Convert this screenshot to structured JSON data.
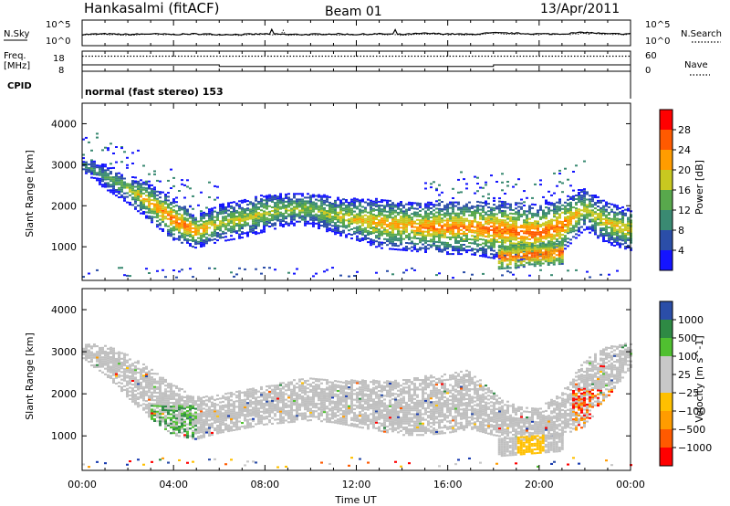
{
  "header": {
    "station": "Hankasalmi (fitACF)",
    "beam": "Beam 01",
    "date": "13/Apr/2011"
  },
  "noise_panel": {
    "left_label": "N.Sky",
    "right_label": "N.Search",
    "left_ticks": [
      "10^5",
      "10^0"
    ],
    "right_ticks": [
      "10^5",
      "10^0"
    ]
  },
  "freq_panel": {
    "left_label_1": "Freq.",
    "left_label_2": "[MHz]",
    "left_ticks": [
      "18",
      "8"
    ],
    "right_label": "Nave",
    "right_ticks": [
      "60",
      "0"
    ],
    "cpid_label": "CPID",
    "cpid_value": "normal (fast stereo) 153"
  },
  "colors": {
    "power_scale": [
      "#1414ff",
      "#2b4ea8",
      "#3a8a72",
      "#58a84c",
      "#c8c820",
      "#ff9c00",
      "#ff5a00",
      "#ff0000"
    ],
    "velocity_scale": [
      "#ff0000",
      "#ff5a00",
      "#ff9c00",
      "#ffc000",
      "#c8c8c8",
      "#c8c8c8",
      "#50c030",
      "#2e8a44",
      "#2b4ea8",
      "#1a3cb0"
    ],
    "ground_scatter": "#c0c0c0"
  },
  "chart_data": [
    {
      "type": "line",
      "name": "noise",
      "x_range_hours": [
        0,
        24
      ],
      "series": [
        {
          "name": "N.Sky",
          "values": [
            2.2,
            2.3,
            2.2,
            2.3,
            2.2,
            2.3,
            2.2,
            2.2,
            2.3,
            2.2,
            2.2,
            2.3,
            2.2,
            2.3,
            2.2,
            2.4,
            2.3,
            2.2,
            2.5,
            2.4,
            2.3,
            2.3,
            2.6,
            2.3,
            2.3
          ]
        },
        {
          "name": "N.Search",
          "values": [
            2.1,
            2.2,
            2.1,
            2.2,
            2.1,
            2.2,
            2.1,
            2.1,
            2.2,
            2.1,
            2.1,
            2.2,
            2.1,
            2.2,
            2.1,
            2.3,
            2.2,
            2.1,
            2.4,
            2.3,
            2.2,
            2.2,
            2.4,
            2.2,
            2.2
          ]
        }
      ]
    },
    {
      "type": "line",
      "name": "frequency",
      "ylabel": "[MHz]",
      "ylim": [
        8,
        18
      ],
      "segments_hours": [
        [
          0,
          6,
          11.2
        ],
        [
          6,
          18,
          10.4
        ],
        [
          18,
          24,
          11.2
        ]
      ],
      "nave": 45
    },
    {
      "type": "heatmap",
      "name": "power",
      "ylabel": "Slant Range [km]",
      "ylim": [
        180,
        4500
      ],
      "yticks": [
        "1000",
        "2000",
        "3000",
        "4000"
      ],
      "colorbar_label": "Power [dB]",
      "colorbar_ticks": [
        "4",
        "8",
        "12",
        "16",
        "20",
        "24",
        "28"
      ],
      "band_center_km": [
        3000,
        2700,
        2400,
        2050,
        1650,
        1350,
        1550,
        1650,
        1800,
        1900,
        1900,
        1750,
        1650,
        1550,
        1500,
        1450,
        1450,
        1450,
        1400,
        1350,
        1300,
        1500,
        1900,
        1550,
        1400
      ],
      "band_width_km": [
        150,
        300,
        350,
        450,
        500,
        400,
        450,
        450,
        450,
        400,
        400,
        450,
        500,
        600,
        600,
        600,
        650,
        650,
        700,
        700,
        700,
        650,
        500,
        500,
        500
      ],
      "peak_db": [
        12,
        14,
        18,
        24,
        28,
        26,
        20,
        20,
        20,
        18,
        18,
        20,
        22,
        24,
        24,
        26,
        26,
        26,
        28,
        28,
        28,
        28,
        20,
        22,
        22
      ],
      "lower_patch": {
        "start_hour": 18.2,
        "end_hour": 21.0,
        "center_km": 720,
        "width_km": 280,
        "peak_db": 28
      }
    },
    {
      "type": "heatmap",
      "name": "velocity",
      "ylabel": "Slant Range [km]",
      "xlabel": "Time UT",
      "ylim": [
        180,
        4500
      ],
      "yticks": [
        "1000",
        "2000",
        "3000",
        "4000"
      ],
      "xticks": [
        "00:00",
        "04:00",
        "08:00",
        "12:00",
        "16:00",
        "20:00",
        "00:00"
      ],
      "colorbar_label": "Velocity [m s^-1]",
      "colorbar_ticks": [
        "1000",
        "500",
        "100",
        "25",
        "−25",
        "−100",
        "−500",
        "−1000"
      ],
      "ground_scatter_center_km": [
        3000,
        2800,
        2400,
        2000,
        1600,
        1400,
        1500,
        1600,
        1700,
        1800,
        1850,
        1800,
        1750,
        1700,
        1650,
        1700,
        1750,
        1850,
        1500,
        1300,
        1250,
        1500,
        2000,
        2500,
        2900
      ],
      "ground_scatter_width_km": [
        200,
        350,
        500,
        600,
        600,
        500,
        450,
        450,
        450,
        500,
        500,
        500,
        550,
        600,
        650,
        700,
        700,
        700,
        500,
        400,
        400,
        500,
        800,
        600,
        300
      ],
      "lower_patch_velocity_ms": -300
    }
  ]
}
